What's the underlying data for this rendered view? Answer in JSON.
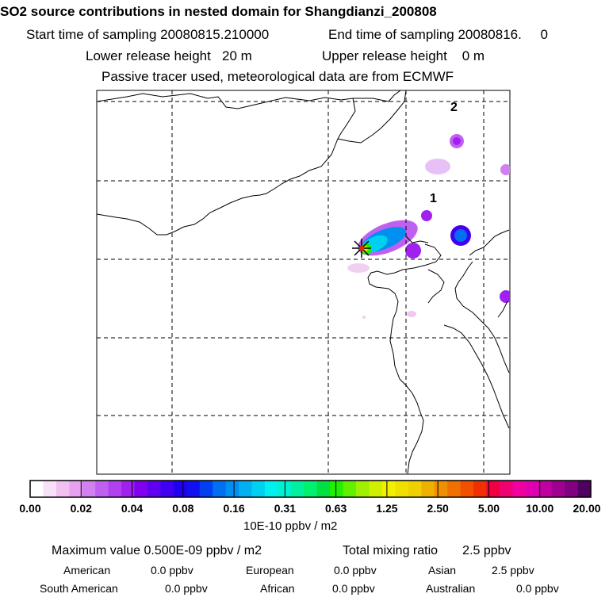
{
  "title": "SO2 source contributions in nested domain for Shangdianzi_200808",
  "sampling": {
    "start_label": "Start time of sampling 20080815.210000",
    "end_label": "End time of sampling 20080816.     0"
  },
  "release": {
    "lower_label": "Lower release height   20 m",
    "upper_label": "Upper release height    0 m"
  },
  "tracer_note": "Passive tracer used, meteorological data are from ECMWF",
  "map": {
    "grid_label_1": "1",
    "grid_label_2": "2",
    "station_marker": "source-star"
  },
  "colorbar": {
    "ticks": [
      "0.00",
      "0.02",
      "0.04",
      "0.08",
      "0.16",
      "0.31",
      "0.63",
      "1.25",
      "2.50",
      "5.00",
      "10.00",
      "20.00"
    ],
    "unit": "10E-10 ppbv / m2",
    "colors": [
      "#ffffff",
      "#f8e0f8",
      "#f0c0f0",
      "#e8a0f0",
      "#d080f0",
      "#c060f0",
      "#b040f0",
      "#a020f0",
      "#8000f0",
      "#6000f0",
      "#4000f0",
      "#2000f0",
      "#1010f0",
      "#0040f0",
      "#0070f0",
      "#0090f0",
      "#00b0f0",
      "#00d0f0",
      "#00f0f0",
      "#00f0d0",
      "#00f0a0",
      "#00f070",
      "#00e040",
      "#20f000",
      "#60f000",
      "#a0f000",
      "#d0f000",
      "#f0f000",
      "#f0e000",
      "#f0d000",
      "#f0b000",
      "#f09000",
      "#f07000",
      "#f05000",
      "#f03000",
      "#f00040",
      "#f00070",
      "#f000a0",
      "#e000b0",
      "#c000a0",
      "#a00090",
      "#800080",
      "#500060"
    ]
  },
  "summary": {
    "max_value": "Maximum value  0.500E-09 ppbv / m2",
    "total_mixing": "Total mixing ratio       2.5 ppbv",
    "american_label": "American",
    "american_val": "0.0 ppbv",
    "european_label": "European",
    "european_val": "0.0 ppbv",
    "asian_label": "Asian",
    "asian_val": "2.5 ppbv",
    "south_american_label": "South American",
    "south_american_val": "0.0 ppbv",
    "african_label": "African",
    "african_val": "0.0 ppbv",
    "australian_label": "Australian",
    "australian_val": "0.0 ppbv"
  }
}
